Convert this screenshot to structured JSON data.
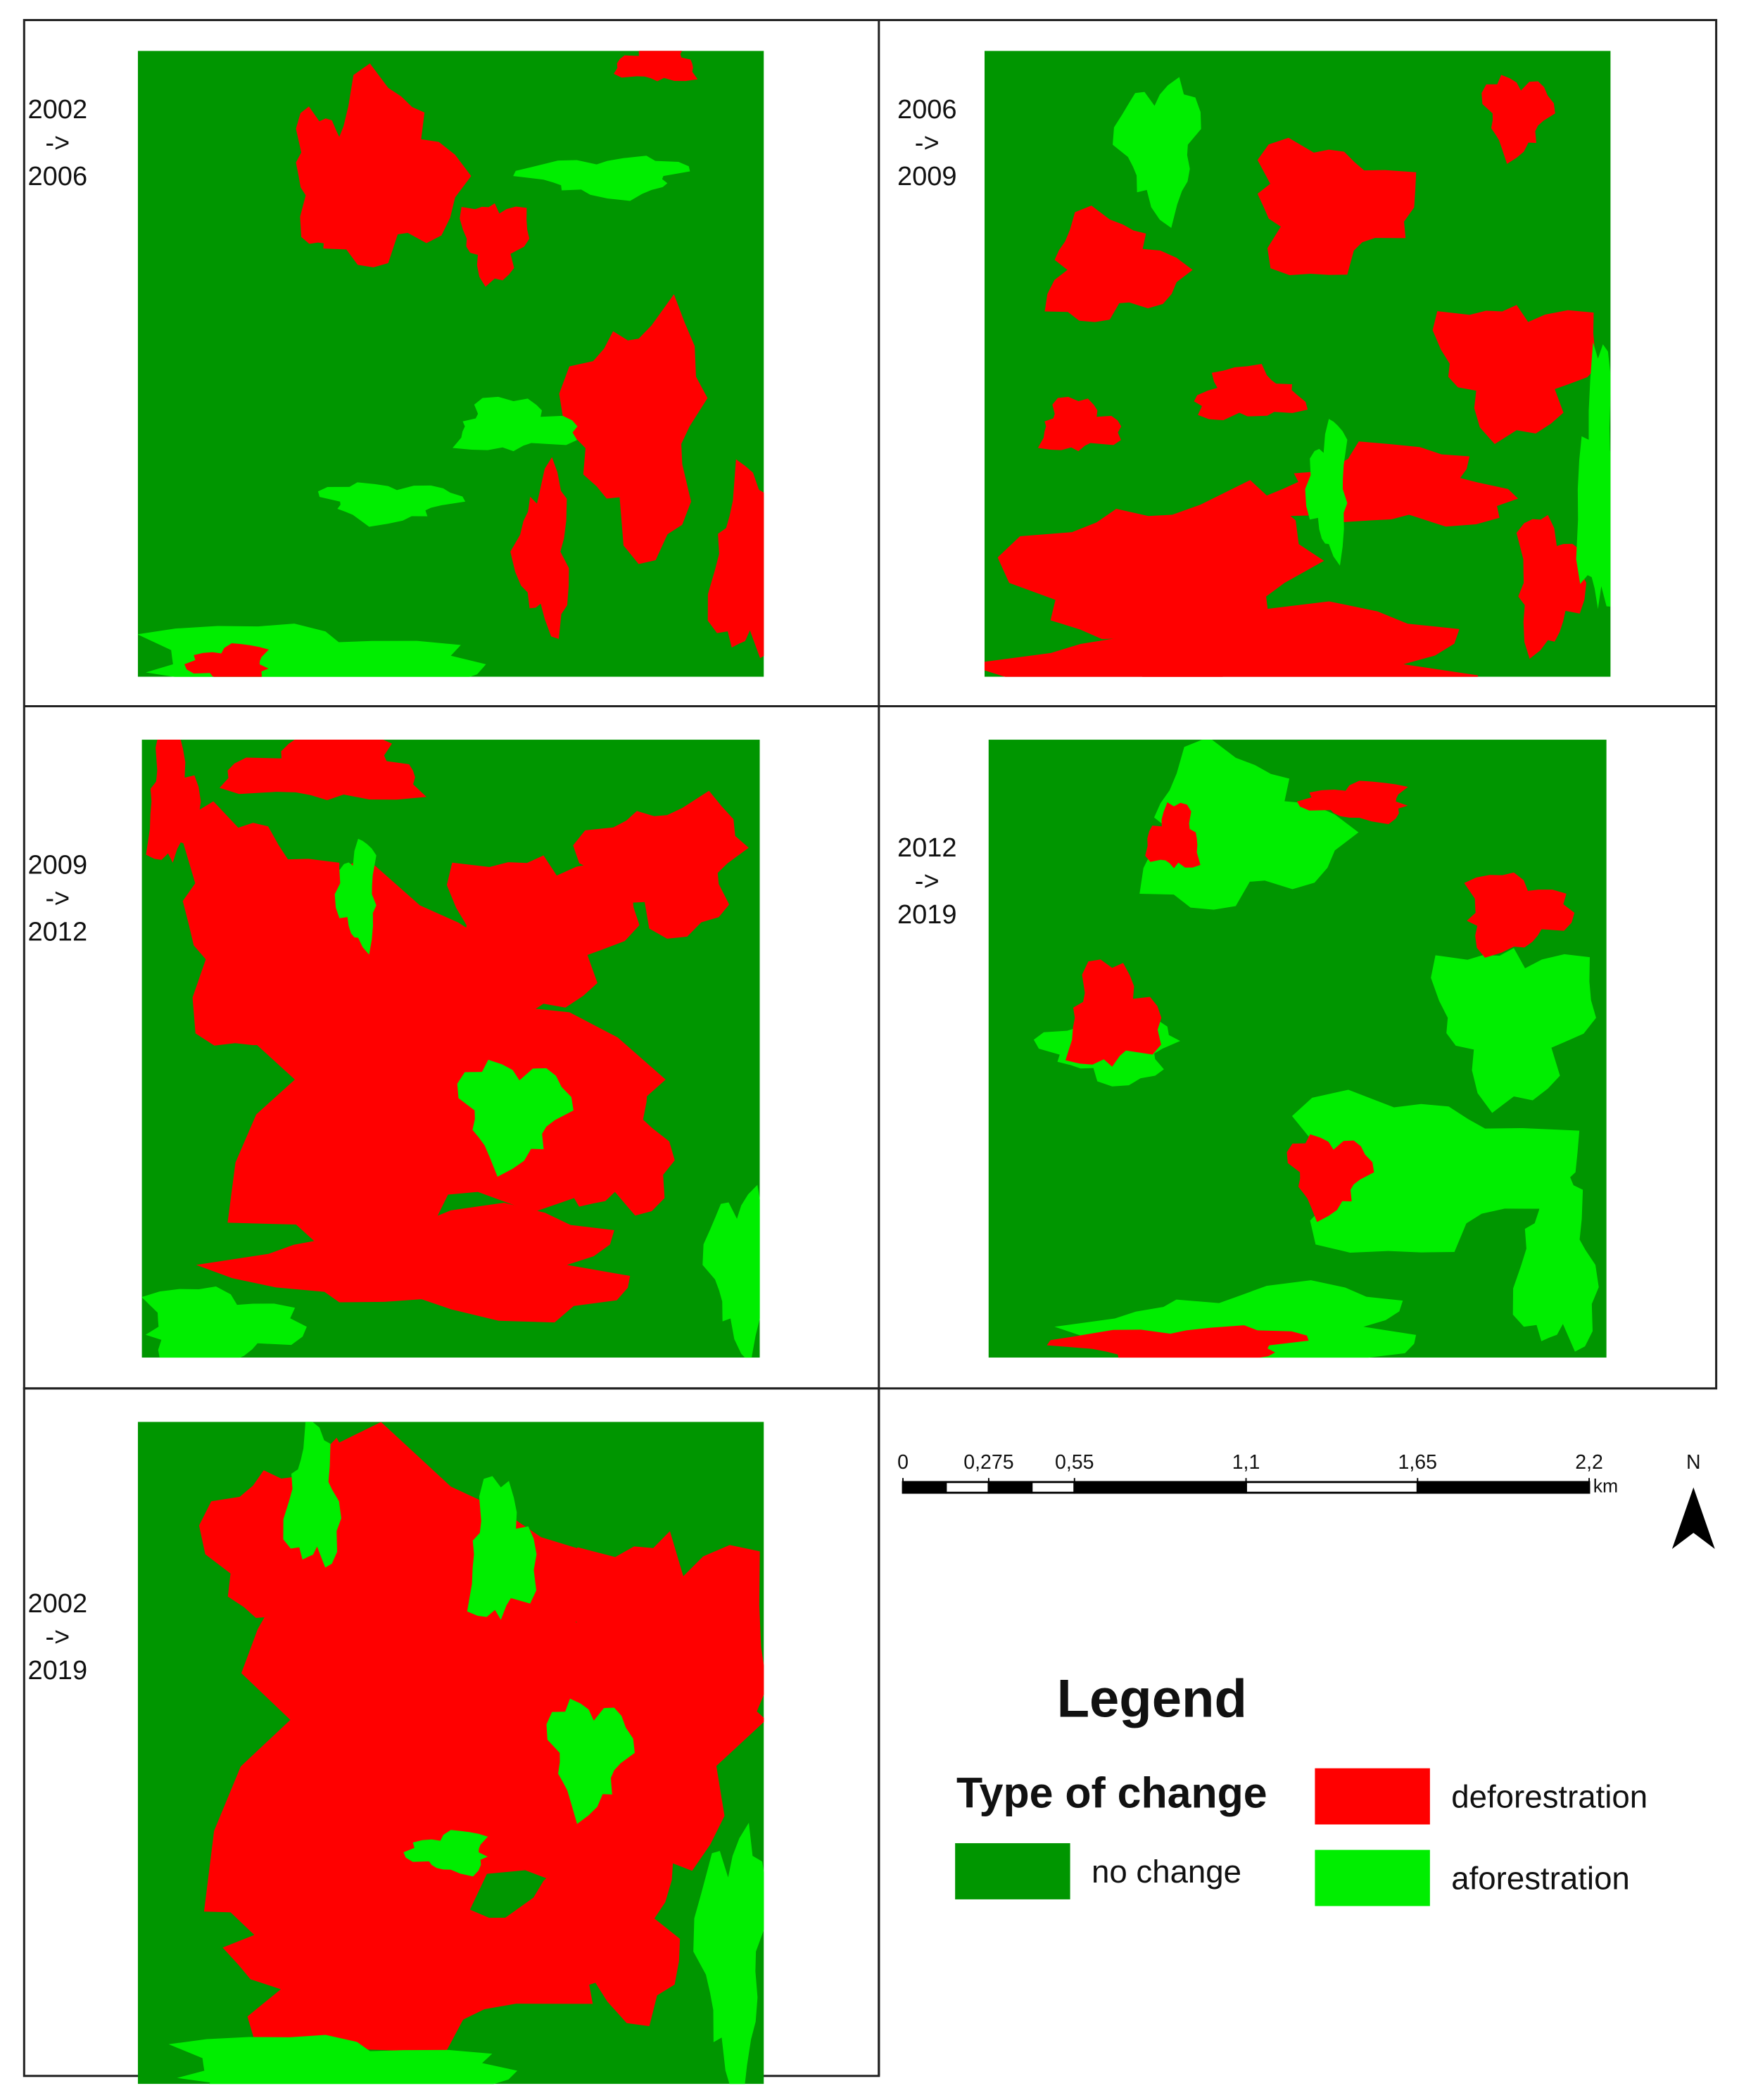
{
  "panels": [
    {
      "label": [
        "2002",
        "->",
        "2006"
      ]
    },
    {
      "label": [
        "2006",
        "->",
        "2009"
      ]
    },
    {
      "label": [
        "2009",
        "->",
        "2012"
      ]
    },
    {
      "label": [
        "2012",
        "->",
        "2019"
      ]
    },
    {
      "label": [
        "2002",
        "->",
        "2019"
      ]
    }
  ],
  "scale_bar": {
    "ticks": [
      0,
      {
        "value": 0.275,
        "label": "0,275"
      },
      {
        "value": 0.55,
        "label": "0,55"
      },
      {
        "value": 1.1,
        "label": "1,1"
      },
      {
        "value": 1.65,
        "label": "1,65"
      },
      {
        "value": 2.2,
        "label": "2,2"
      }
    ],
    "unit": "km"
  },
  "north_arrow": "N",
  "legend": {
    "title": "Legend",
    "subtitle": "Type of change",
    "items": [
      {
        "label": "deforestration",
        "color": "#ff0000"
      },
      {
        "label": "aforestration",
        "color": "#00ee00"
      },
      {
        "label": "no change",
        "color": "#009600"
      }
    ]
  }
}
